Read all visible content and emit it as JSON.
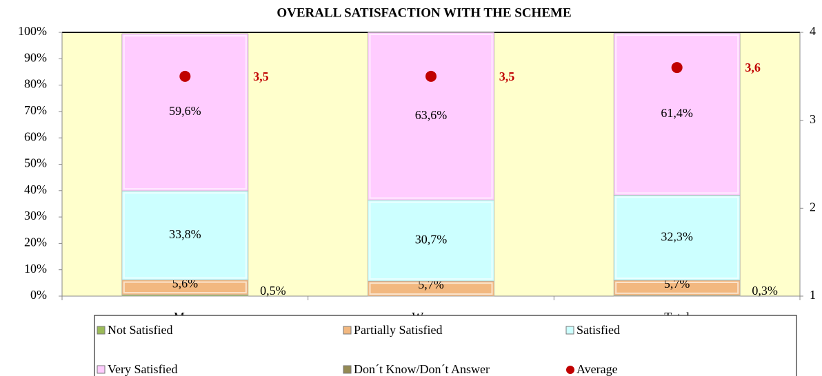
{
  "chart_data": {
    "type": "stacked_bar_percent",
    "title": "OVERALL SATISFACTION WITH THE SCHEME",
    "categories": [
      "Men",
      "Women",
      "Total"
    ],
    "series": [
      {
        "name": "Not Satisfied",
        "color": "#9bbb59",
        "values": [
          0.5,
          0,
          0.3
        ],
        "value_labels": [
          "0,5%",
          null,
          "0,3%"
        ]
      },
      {
        "name": "Partially Satisfied",
        "color": "#f2b880",
        "values": [
          5.6,
          5.7,
          5.7
        ],
        "value_labels": [
          "5,6%",
          "5,7%",
          "5,7%"
        ]
      },
      {
        "name": "Satisfied",
        "color": "#ccffff",
        "values": [
          33.8,
          30.7,
          32.3
        ],
        "value_labels": [
          "33,8%",
          "30,7%",
          "32,3%"
        ]
      },
      {
        "name": "Very Satisfied",
        "color": "#ffccff",
        "values": [
          59.6,
          63.6,
          61.4
        ],
        "value_labels": [
          "59,6%",
          "63,6%",
          "61,4%"
        ]
      },
      {
        "name": "Don´t Know/Don´t Answer",
        "color": "#948a54",
        "values": [
          0,
          0,
          0
        ]
      },
      {
        "name": "Average",
        "color": "#c00000",
        "type": "scatter",
        "axis": "y2",
        "values": [
          3.5,
          3.5,
          3.6
        ],
        "value_labels": [
          "3,5",
          "3,5",
          "3,6"
        ]
      }
    ],
    "ylim": [
      0,
      100
    ],
    "yticks": [
      {
        "value": 0,
        "label": "0%"
      },
      {
        "value": 10,
        "label": "10%"
      },
      {
        "value": 20,
        "label": "20%"
      },
      {
        "value": 30,
        "label": "30%"
      },
      {
        "value": 40,
        "label": "40%"
      },
      {
        "value": 50,
        "label": "50%"
      },
      {
        "value": 60,
        "label": "60%"
      },
      {
        "value": 70,
        "label": "70%"
      },
      {
        "value": 80,
        "label": "80%"
      },
      {
        "value": 90,
        "label": "90%"
      },
      {
        "value": 100,
        "label": "100%"
      }
    ],
    "y2lim": [
      1,
      4
    ],
    "y2ticks": [
      1,
      2,
      3,
      4
    ],
    "background": "#ffffcc",
    "legend": "bottom"
  }
}
